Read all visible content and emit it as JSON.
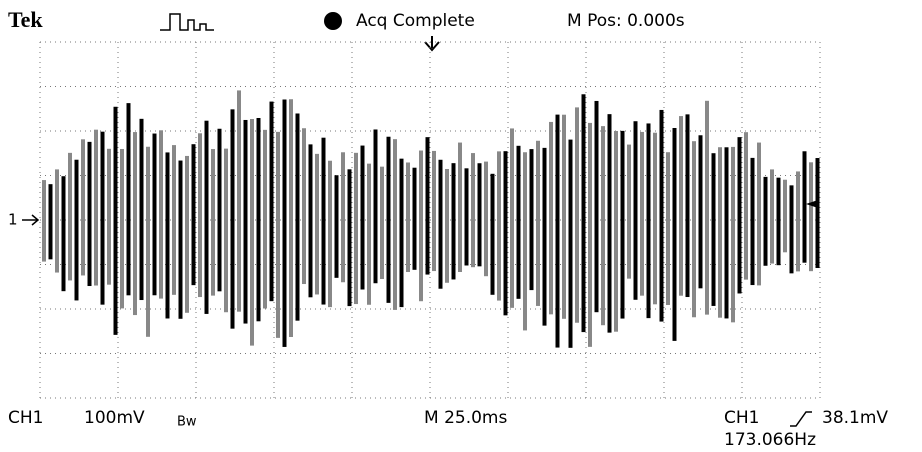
{
  "header": {
    "brand": "Tek",
    "status": "Acq Complete",
    "position": "M Pos: 0.000s"
  },
  "channel_marker": "1",
  "footer": {
    "channel": "CH1",
    "scale": "100mV",
    "bandwidth": "Bw",
    "timebase": "M 25.0ms",
    "trigger_channel": "CH1",
    "trigger_level": "38.1mV",
    "frequency": "173.066Hz"
  }
}
